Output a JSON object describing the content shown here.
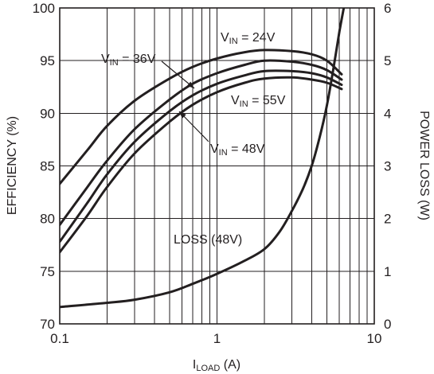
{
  "chart_data": {
    "type": "line",
    "x_scale": "log",
    "xlim": [
      0.1,
      10
    ],
    "ylim": [
      70,
      100
    ],
    "y2lim": [
      0,
      6
    ],
    "grid": true,
    "xlabel": {
      "main": "I",
      "sub": "LOAD",
      "unit": " (A)"
    },
    "ylabel": "EFFICIENCY (%)",
    "y2label": "POWER LOSS (W)",
    "x_ticks": [
      {
        "value": 0.1,
        "label": "0.1"
      },
      {
        "value": 1,
        "label": "1"
      },
      {
        "value": 10,
        "label": "10"
      }
    ],
    "y_ticks": [
      {
        "value": 70,
        "label": "70"
      },
      {
        "value": 75,
        "label": "75"
      },
      {
        "value": 80,
        "label": "80"
      },
      {
        "value": 85,
        "label": "85"
      },
      {
        "value": 90,
        "label": "90"
      },
      {
        "value": 95,
        "label": "95"
      },
      {
        "value": 100,
        "label": "100"
      }
    ],
    "y2_ticks": [
      {
        "value": 0,
        "label": "0"
      },
      {
        "value": 1,
        "label": "1"
      },
      {
        "value": 2,
        "label": "2"
      },
      {
        "value": 3,
        "label": "3"
      },
      {
        "value": 4,
        "label": "4"
      },
      {
        "value": 5,
        "label": "5"
      },
      {
        "value": 6,
        "label": "6"
      }
    ],
    "series": [
      {
        "name": "VIN = 24V",
        "label_main": "V",
        "label_sub": "IN",
        "label_rest": " = 24V",
        "axis": "left",
        "points": [
          [
            0.1,
            83.3
          ],
          [
            0.15,
            86.5
          ],
          [
            0.2,
            88.8
          ],
          [
            0.3,
            91.2
          ],
          [
            0.5,
            93.3
          ],
          [
            0.7,
            94.4
          ],
          [
            1,
            95.2
          ],
          [
            1.5,
            95.8
          ],
          [
            2,
            96
          ],
          [
            3,
            95.9
          ],
          [
            4,
            95.6
          ],
          [
            5,
            95
          ],
          [
            6.2,
            93.7
          ]
        ]
      },
      {
        "name": "VIN = 36V",
        "label_main": "V",
        "label_sub": "IN",
        "label_rest": " = 36V",
        "axis": "left",
        "points": [
          [
            0.1,
            79.4
          ],
          [
            0.15,
            83
          ],
          [
            0.2,
            85.5
          ],
          [
            0.3,
            88.5
          ],
          [
            0.5,
            91.3
          ],
          [
            0.7,
            92.8
          ],
          [
            1,
            93.8
          ],
          [
            1.5,
            94.6
          ],
          [
            2,
            95
          ],
          [
            3,
            94.9
          ],
          [
            4,
            94.6
          ],
          [
            5,
            94.1
          ],
          [
            6.2,
            93.2
          ]
        ]
      },
      {
        "name": "VIN = 48V",
        "label_main": "V",
        "label_sub": "IN",
        "label_rest": " = 48V",
        "axis": "left",
        "points": [
          [
            0.1,
            77.8
          ],
          [
            0.15,
            81.5
          ],
          [
            0.2,
            84.2
          ],
          [
            0.3,
            87.3
          ],
          [
            0.5,
            90.2
          ],
          [
            0.7,
            91.7
          ],
          [
            1,
            92.8
          ],
          [
            1.5,
            93.6
          ],
          [
            2,
            94
          ],
          [
            3,
            94
          ],
          [
            4,
            93.8
          ],
          [
            5,
            93.4
          ],
          [
            6.2,
            92.7
          ]
        ]
      },
      {
        "name": "VIN = 55V",
        "label_main": "V",
        "label_sub": "IN",
        "label_rest": " = 55V",
        "axis": "left",
        "points": [
          [
            0.1,
            76.8
          ],
          [
            0.15,
            80.3
          ],
          [
            0.2,
            83
          ],
          [
            0.3,
            86.2
          ],
          [
            0.5,
            89.2
          ],
          [
            0.7,
            90.8
          ],
          [
            1,
            92
          ],
          [
            1.5,
            92.9
          ],
          [
            2,
            93.3
          ],
          [
            3,
            93.4
          ],
          [
            4,
            93.2
          ],
          [
            5,
            92.9
          ],
          [
            6.2,
            92.3
          ]
        ]
      },
      {
        "name": "LOSS (48V)",
        "label_main": "LOSS (48V)",
        "label_sub": "",
        "label_rest": "",
        "axis": "right",
        "points": [
          [
            0.1,
            0.32
          ],
          [
            0.2,
            0.4
          ],
          [
            0.3,
            0.46
          ],
          [
            0.5,
            0.6
          ],
          [
            0.7,
            0.76
          ],
          [
            1,
            0.95
          ],
          [
            1.5,
            1.2
          ],
          [
            2,
            1.42
          ],
          [
            2.5,
            1.75
          ],
          [
            3,
            2.15
          ],
          [
            3.5,
            2.55
          ],
          [
            4,
            3.0
          ],
          [
            4.5,
            3.55
          ],
          [
            5,
            4.15
          ],
          [
            5.5,
            4.85
          ],
          [
            6,
            5.55
          ],
          [
            6.4,
            6.0
          ]
        ]
      }
    ]
  }
}
